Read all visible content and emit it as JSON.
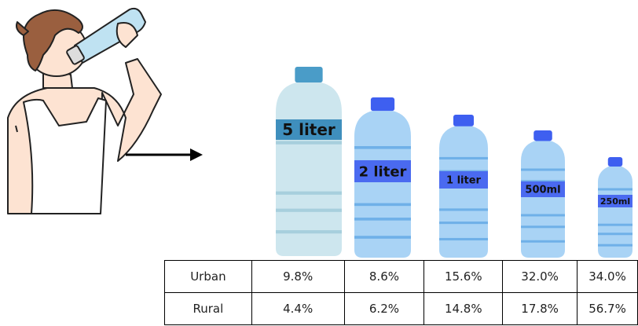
{
  "bottles": [
    "5 liter",
    "2 liter",
    "1 liter",
    "500ml",
    "250ml"
  ],
  "table": {
    "rows": [
      [
        "Urban",
        "9.8%",
        "8.6%",
        "15.6%",
        "32.0%",
        "34.0%"
      ],
      [
        "Rural",
        "4.4%",
        "6.2%",
        "14.8%",
        "17.8%",
        "56.7%"
      ]
    ]
  }
}
